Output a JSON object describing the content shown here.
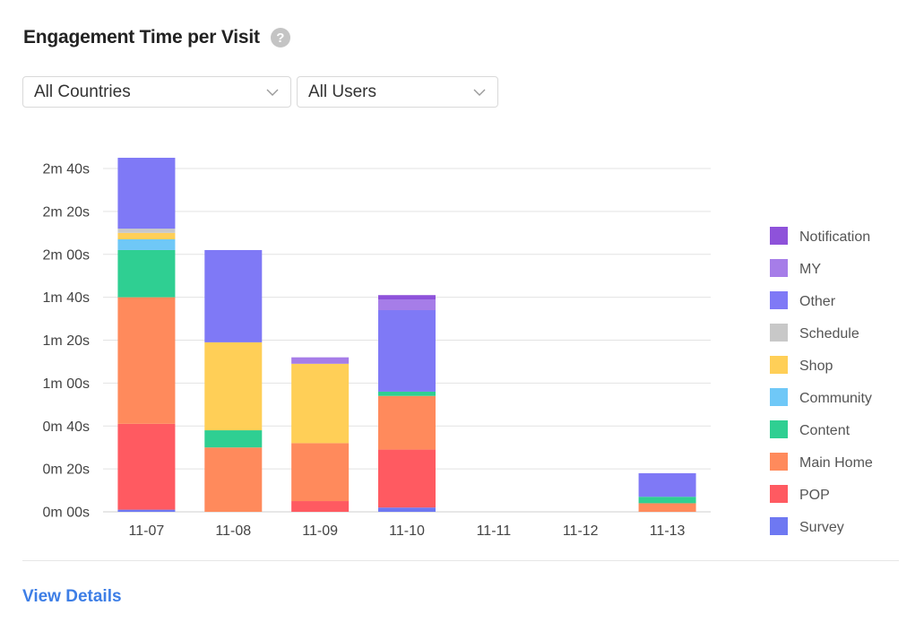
{
  "header": {
    "title": "Engagement Time per Visit",
    "help_icon": "question-mark-icon"
  },
  "filters": {
    "country": "All Countries",
    "users": "All Users"
  },
  "footer": {
    "view_details": "View Details"
  },
  "chart_data": {
    "type": "bar",
    "stacked": true,
    "categories": [
      "11-07",
      "11-08",
      "11-09",
      "11-10",
      "11-11",
      "11-12",
      "11-13"
    ],
    "y_tick_labels": [
      "0m 00s",
      "0m 20s",
      "0m 40s",
      "1m 00s",
      "1m 20s",
      "1m 40s",
      "2m 00s",
      "2m 20s",
      "2m 40s"
    ],
    "y_unit": "seconds",
    "ylim": [
      0,
      160
    ],
    "grid": true,
    "legend_position": "right",
    "series": [
      {
        "name": "Survey",
        "color": "#6e78f2",
        "values": [
          1,
          0,
          0,
          2,
          0,
          0,
          0
        ]
      },
      {
        "name": "POP",
        "color": "#ff5a61",
        "values": [
          40,
          0,
          5,
          27,
          0,
          0,
          0
        ]
      },
      {
        "name": "Main Home",
        "color": "#ff8a5c",
        "values": [
          59,
          30,
          27,
          25,
          0,
          0,
          4
        ]
      },
      {
        "name": "Content",
        "color": "#2fcf92",
        "values": [
          22,
          8,
          0,
          2,
          0,
          0,
          3
        ]
      },
      {
        "name": "Community",
        "color": "#6fc8f7",
        "values": [
          5,
          0,
          0,
          0,
          0,
          0,
          0
        ]
      },
      {
        "name": "Shop",
        "color": "#ffcf57",
        "values": [
          3,
          41,
          37,
          0,
          0,
          0,
          0
        ]
      },
      {
        "name": "Schedule",
        "color": "#c8c8c8",
        "values": [
          2,
          0,
          0,
          0,
          0,
          0,
          0
        ]
      },
      {
        "name": "Other",
        "color": "#7f79f6",
        "values": [
          33,
          43,
          0,
          38,
          0,
          0,
          11
        ]
      },
      {
        "name": "MY",
        "color": "#a67de8",
        "values": [
          0,
          0,
          3,
          5,
          0,
          0,
          0
        ]
      },
      {
        "name": "Notification",
        "color": "#8e52da",
        "values": [
          0,
          0,
          0,
          2,
          0,
          0,
          0
        ]
      }
    ]
  },
  "colors": {
    "link": "#3d7ee6",
    "grid": "#e3e3e3",
    "help_icon_bg": "#c4c4c4"
  }
}
